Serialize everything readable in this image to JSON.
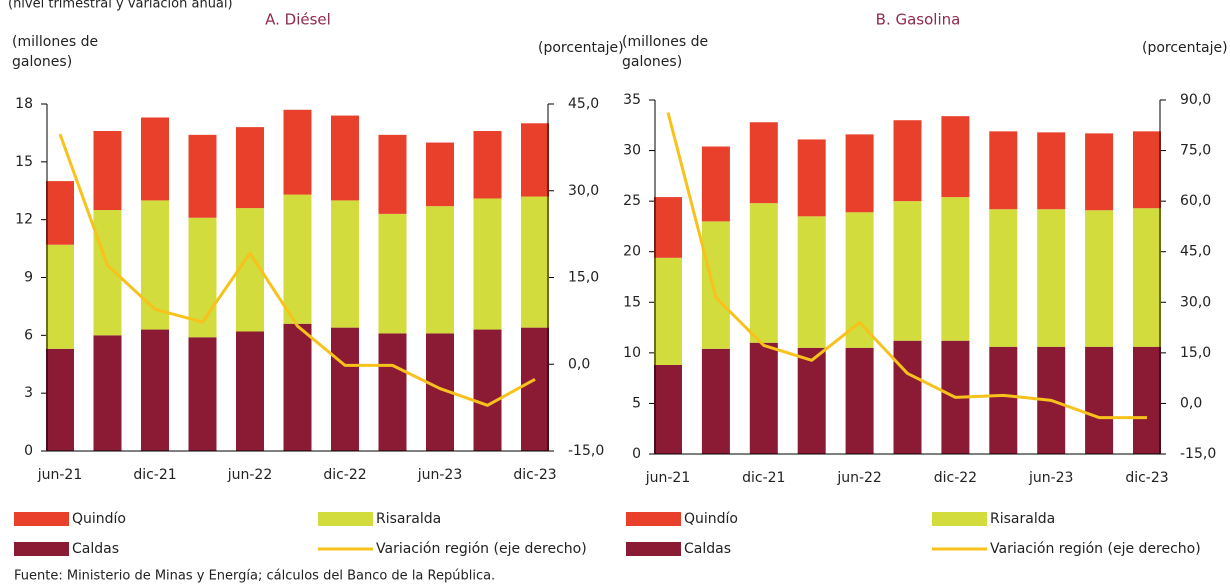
{
  "subtitle": "(nivel trimestral y variación anual)",
  "source": "Fuente: Ministerio de Minas y Energía; cálculos del Banco de la República.",
  "chart_data": [
    {
      "type": "bar",
      "stacked": true,
      "title": "A. Diésel",
      "y_label": "(millones de galones)",
      "y2_label": "(porcentaje)",
      "categories": [
        "jun-21",
        null,
        "dic-21",
        null,
        "jun-22",
        null,
        "dic-22",
        null,
        "jun-23",
        null,
        "dic-23"
      ],
      "ylim": [
        0,
        18
      ],
      "yticks": [
        0,
        3,
        6,
        9,
        12,
        15,
        18
      ],
      "y2lim": [
        -15,
        45
      ],
      "y2ticks": [
        {
          "value": -15,
          "label": "-15,0"
        },
        {
          "value": 0,
          "label": "0,0"
        },
        {
          "value": 15,
          "label": "15,0"
        },
        {
          "value": 30,
          "label": "30,0"
        },
        {
          "value": 45,
          "label": "45,0"
        }
      ],
      "series": [
        {
          "name": "Quindío",
          "color": "#e8402a",
          "values": [
            3.3,
            4.1,
            4.3,
            4.3,
            4.2,
            4.4,
            4.4,
            4.1,
            3.3,
            3.5,
            3.8
          ]
        },
        {
          "name": "Risaralda",
          "color": "#d2dc3c",
          "values": [
            5.4,
            6.5,
            6.7,
            6.2,
            6.4,
            6.7,
            6.6,
            6.2,
            6.6,
            6.8,
            6.8
          ]
        },
        {
          "name": "Caldas",
          "color": "#8b1a35",
          "values": [
            5.3,
            6.0,
            6.3,
            5.9,
            6.2,
            6.6,
            6.4,
            6.1,
            6.1,
            6.3,
            6.4
          ]
        },
        {
          "name": "Variación región (eje derecho)",
          "color": "#f7c21b",
          "type": "line",
          "axis": "y2",
          "values": [
            39.8,
            17.1,
            9.5,
            7.3,
            19.2,
            6.6,
            -0.2,
            -0.2,
            -4.2,
            -7.1,
            -2.6
          ]
        }
      ]
    },
    {
      "type": "bar",
      "stacked": true,
      "title": "B. Gasolina",
      "y_label": "(millones de galones)",
      "y2_label": "(porcentaje)",
      "categories": [
        "jun-21",
        null,
        "dic-21",
        null,
        "jun-22",
        null,
        "dic-22",
        null,
        "jun-23",
        null,
        "dic-23"
      ],
      "ylim": [
        0,
        35
      ],
      "yticks": [
        0,
        5,
        10,
        15,
        20,
        25,
        30,
        35
      ],
      "y2lim": [
        -15,
        90
      ],
      "y2ticks": [
        {
          "value": -15,
          "label": "-15,0"
        },
        {
          "value": 0,
          "label": "0,0"
        },
        {
          "value": 15,
          "label": "15,0"
        },
        {
          "value": 30,
          "label": "30,0"
        },
        {
          "value": 45,
          "label": "45,0"
        },
        {
          "value": 60,
          "label": "60,0"
        },
        {
          "value": 75,
          "label": "75,0"
        },
        {
          "value": 90,
          "label": "90,0"
        }
      ],
      "series": [
        {
          "name": "Quindío",
          "color": "#e8402a",
          "values": [
            6.0,
            7.4,
            8.0,
            7.6,
            7.7,
            8.0,
            8.0,
            7.7,
            7.6,
            7.6,
            7.6
          ]
        },
        {
          "name": "Risaralda",
          "color": "#d2dc3c",
          "values": [
            10.6,
            12.6,
            13.8,
            13.0,
            13.4,
            13.8,
            14.2,
            13.6,
            13.6,
            13.5,
            13.7
          ]
        },
        {
          "name": "Caldas",
          "color": "#8b1a35",
          "values": [
            8.8,
            10.4,
            11.0,
            10.5,
            10.5,
            11.2,
            11.2,
            10.6,
            10.6,
            10.6,
            10.6
          ]
        },
        {
          "name": "Variación región (eje derecho)",
          "color": "#f7c21b",
          "type": "line",
          "axis": "y2",
          "values": [
            86.3,
            31.4,
            17.2,
            12.8,
            24.0,
            8.9,
            1.8,
            2.4,
            0.9,
            -4.2,
            -4.2
          ]
        }
      ]
    }
  ]
}
